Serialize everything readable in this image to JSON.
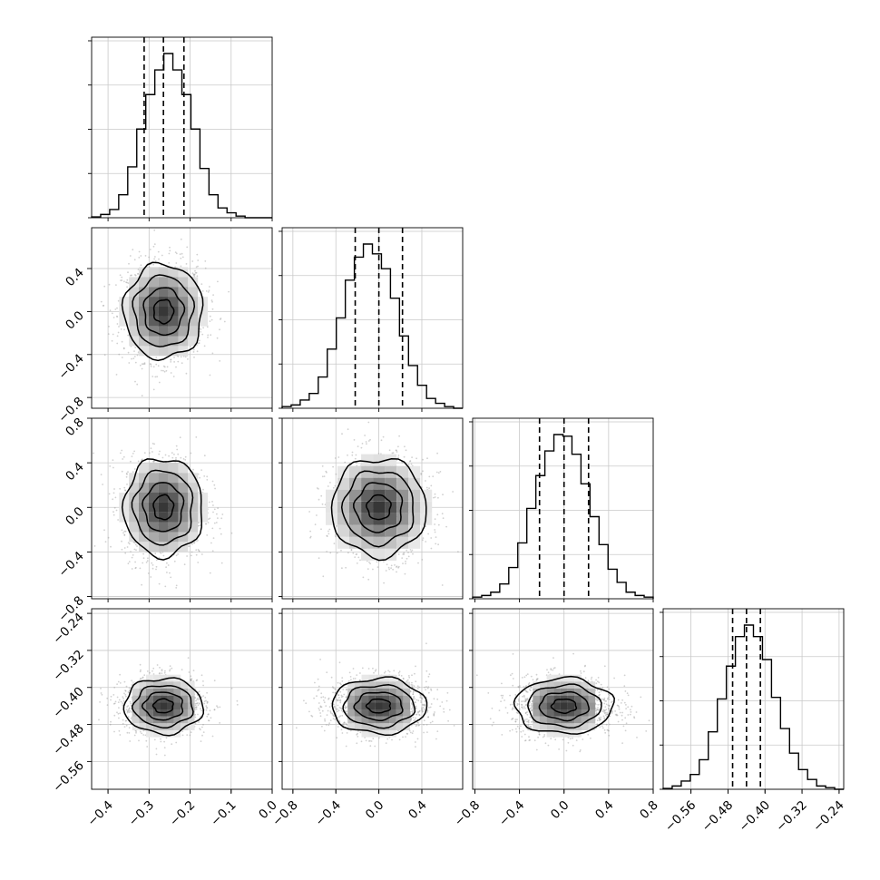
{
  "chart_data": {
    "type": "corner",
    "parameters": [
      {
        "index": 0,
        "range": [
          -0.44,
          0.0
        ],
        "ticks": [
          "−0.4",
          "−0.3",
          "−0.2",
          "−0.1",
          "0.0"
        ],
        "tick_values": [
          -0.4,
          -0.3,
          -0.2,
          -0.1,
          0.0
        ],
        "mean": -0.265,
        "sigma": 0.048,
        "quantiles": [
          -0.312,
          -0.265,
          -0.215
        ]
      },
      {
        "index": 1,
        "range": [
          -0.9,
          0.78
        ],
        "ticks": [
          "−0.8",
          "−0.4",
          "0.0",
          "0.4"
        ],
        "tick_values": [
          -0.8,
          -0.4,
          0.0,
          0.4
        ],
        "mean": 0.0,
        "sigma": 0.22,
        "quantiles": [
          -0.22,
          0.0,
          0.22
        ]
      },
      {
        "index": 2,
        "range": [
          -0.82,
          0.8
        ],
        "ticks": [
          "−0.8",
          "−0.4",
          "0.0",
          "0.4",
          "0.8"
        ],
        "tick_values": [
          -0.8,
          -0.4,
          0.0,
          0.4,
          0.8
        ],
        "mean": 0.0,
        "sigma": 0.22,
        "quantiles": [
          -0.22,
          0.0,
          0.22
        ]
      },
      {
        "index": 3,
        "range": [
          -0.62,
          -0.23
        ],
        "ticks": [
          "−0.56",
          "−0.48",
          "−0.40",
          "−0.32",
          "−0.24"
        ],
        "tick_values": [
          -0.56,
          -0.48,
          -0.4,
          -0.32,
          -0.24
        ],
        "mean": -0.44,
        "sigma": 0.03,
        "quantiles": [
          -0.47,
          -0.44,
          -0.41
        ]
      }
    ],
    "histograms": [
      [
        0.005,
        0.02,
        0.05,
        0.14,
        0.31,
        0.54,
        0.75,
        0.9,
        1.0,
        0.9,
        0.75,
        0.54,
        0.3,
        0.14,
        0.06,
        0.03,
        0.01,
        0.0,
        0.0,
        0.0
      ],
      [
        0.01,
        0.02,
        0.05,
        0.09,
        0.19,
        0.36,
        0.55,
        0.78,
        0.92,
        1.0,
        0.94,
        0.85,
        0.67,
        0.44,
        0.26,
        0.14,
        0.06,
        0.03,
        0.01,
        0.0
      ],
      [
        0.01,
        0.02,
        0.04,
        0.09,
        0.19,
        0.34,
        0.55,
        0.75,
        0.9,
        1.0,
        0.99,
        0.88,
        0.7,
        0.5,
        0.33,
        0.18,
        0.1,
        0.04,
        0.02,
        0.01
      ],
      [
        0.005,
        0.02,
        0.05,
        0.09,
        0.18,
        0.35,
        0.55,
        0.75,
        0.93,
        1.0,
        0.93,
        0.79,
        0.56,
        0.37,
        0.22,
        0.12,
        0.06,
        0.02,
        0.01,
        0.0
      ]
    ],
    "grid": true,
    "contour_levels": [
      "0.5",
      "1.0",
      "1.5",
      "2.0"
    ]
  }
}
